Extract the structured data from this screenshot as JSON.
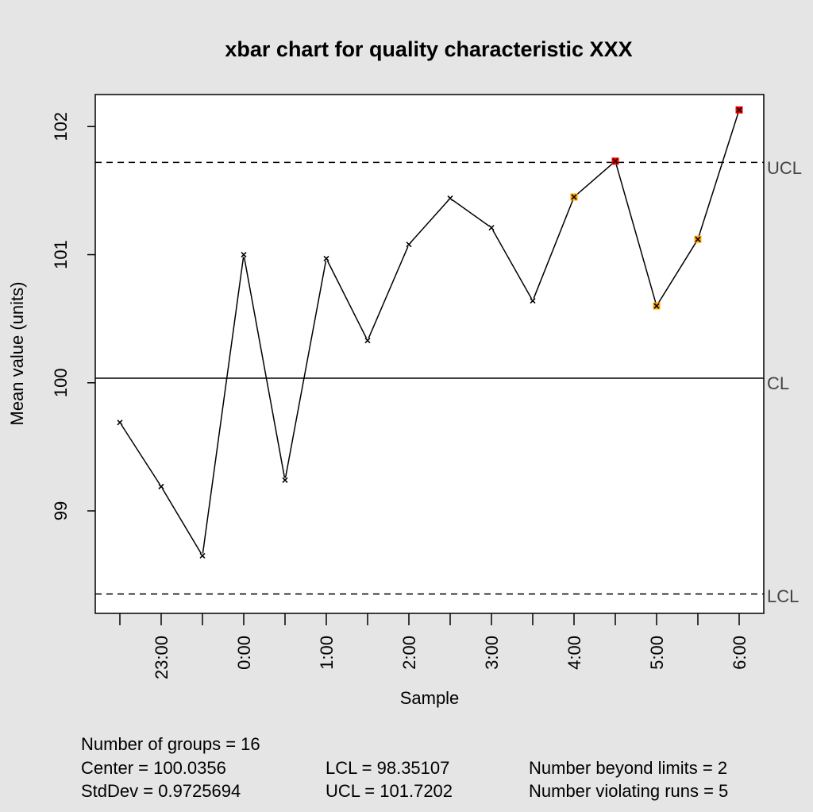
{
  "chart_data": {
    "type": "line",
    "title": "xbar chart for quality characteristic XXX",
    "xlabel": "Sample",
    "ylabel": "Mean value (units)",
    "ylim": [
      98.2,
      102.25
    ],
    "y_ticks": [
      99,
      100,
      101,
      102
    ],
    "x_ticks": [
      "",
      "23:00",
      "",
      "0:00",
      "",
      "1:00",
      "",
      "2:00",
      "",
      "3:00",
      "",
      "4:00",
      "",
      "5:00",
      "",
      "6:00"
    ],
    "grid": false,
    "series": [
      {
        "values": [
          99.69,
          99.19,
          98.65,
          101.0,
          99.24,
          100.97,
          100.33,
          101.08,
          101.44,
          101.21,
          100.64,
          101.45,
          101.73,
          100.6,
          101.12,
          102.13
        ],
        "point_status": [
          "ok",
          "ok",
          "ok",
          "ok",
          "ok",
          "ok",
          "ok",
          "ok",
          "ok",
          "ok",
          "ok",
          "violating-run",
          "beyond-limits",
          "violating-run",
          "violating-run",
          "beyond-limits"
        ]
      }
    ],
    "limits": {
      "ucl": 101.7202,
      "cl": 100.0356,
      "lcl": 98.35107,
      "ucl_label": "UCL",
      "cl_label": "CL",
      "lcl_label": "LCL"
    },
    "colors": {
      "ok": "#000000",
      "violating-run": "#ffa500",
      "beyond-limits": "#ff0000",
      "background": "#e5e5e5",
      "plot_background": "#ffffff"
    }
  },
  "stats": {
    "groups": "Number of groups = 16",
    "center": "Center = 100.0356",
    "stddev": "StdDev = 0.9725694",
    "lcl": "LCL = 98.35107",
    "ucl": "UCL = 101.7202",
    "beyond": "Number beyond limits = 2",
    "violating": "Number violating runs = 5"
  }
}
